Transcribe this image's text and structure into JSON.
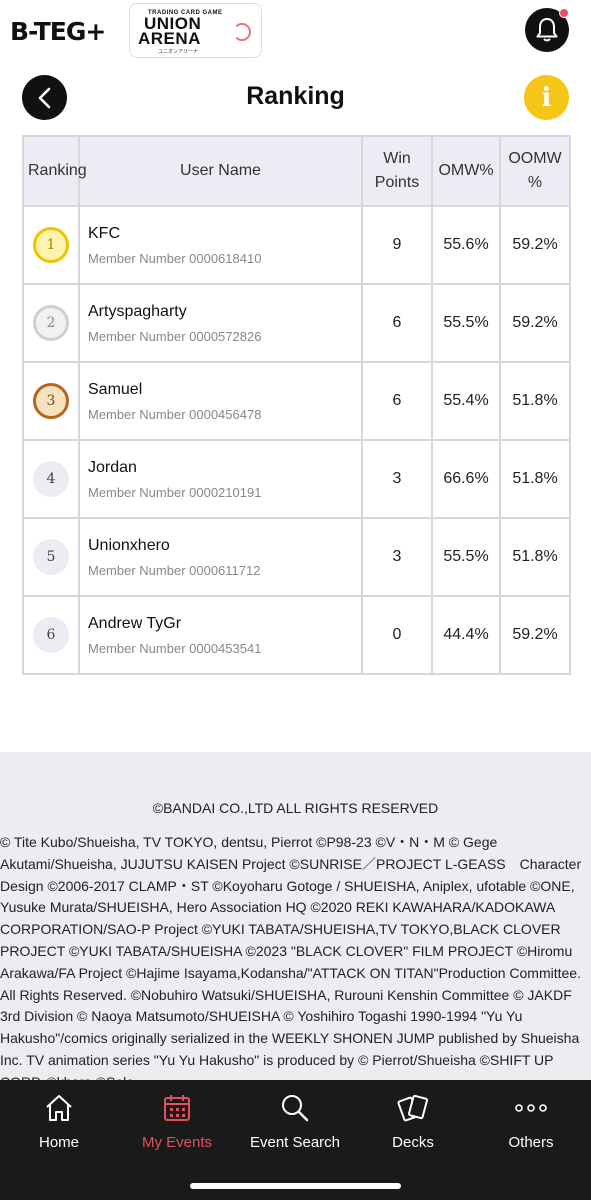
{
  "header": {
    "brand": "B-TEG+",
    "logo": {
      "tagline": "TRADING CARD GAME",
      "line1": "UNION",
      "line2": "ARENA",
      "kana": "ユニオンアリーナ"
    },
    "notification_badge": true
  },
  "title_bar": {
    "title": "Ranking"
  },
  "table": {
    "headers": {
      "rank": "Ranking",
      "user": "User Name",
      "win": "Win Points",
      "omw": "OMW%",
      "oomw": "OOMW %"
    },
    "rows": [
      {
        "rank": "1",
        "medal": "gold",
        "name": "KFC",
        "member": "Member Number 0000618410",
        "win": "9",
        "omw": "55.6%",
        "oomw": "59.2%"
      },
      {
        "rank": "2",
        "medal": "silver",
        "name": "Artyspagharty",
        "member": "Member Number 0000572826",
        "win": "6",
        "omw": "55.5%",
        "oomw": "59.2%"
      },
      {
        "rank": "3",
        "medal": "bronze",
        "name": "Samuel",
        "member": "Member Number 0000456478",
        "win": "6",
        "omw": "55.4%",
        "oomw": "51.8%"
      },
      {
        "rank": "4",
        "medal": "plain",
        "name": "Jordan",
        "member": "Member Number 0000210191",
        "win": "3",
        "omw": "66.6%",
        "oomw": "51.8%"
      },
      {
        "rank": "5",
        "medal": "plain",
        "name": "Unionxhero",
        "member": "Member Number 0000611712",
        "win": "3",
        "omw": "55.5%",
        "oomw": "51.8%"
      },
      {
        "rank": "6",
        "medal": "plain",
        "name": "Andrew TyGr",
        "member": "Member Number 0000453541",
        "win": "0",
        "omw": "44.4%",
        "oomw": "59.2%"
      }
    ]
  },
  "footer": {
    "main": "©BANDAI CO.,LTD ALL RIGHTS RESERVED",
    "credits": "© Tite Kubo/Shueisha, TV TOKYO, dentsu, Pierrot ©P98-23 ©V・N・M © Gege Akutami/Shueisha, JUJUTSU KAISEN Project ©SUNRISE／PROJECT L-GEASS　Character Design ©2006-2017 CLAMP・ST ©Koyoharu Gotoge / SHUEISHA, Aniplex, ufotable ©ONE, Yusuke Murata/SHUEISHA, Hero Association HQ ©2020 REKI KAWAHARA/KADOKAWA CORPORATION/SAO-P Project ©YUKI TABATA/SHUEISHA,TV TOKYO,BLACK CLOVER PROJECT ©YUKI TABATA/SHUEISHA ©2023 \"BLACK CLOVER\" FILM PROJECT ©Hiromu Arakawa/FA Project ©Hajime Isayama,Kodansha/\"ATTACK ON TITAN\"Production Committee. All Rights Reserved. ©Nobuhiro Watsuki/SHUEISHA, Rurouni Kenshin Committee © JAKDF 3rd Division © Naoya Matsumoto/SHUEISHA © Yoshihiro Togashi 1990-1994 \"Yu Yu Hakusho\"/comics originally serialized in the WEEKLY SHONEN JUMP published by Shueisha Inc. TV animation series \"Yu Yu Hakusho\" is produced by © Pierrot/Shueisha ©SHIFT UP CORP. ©khara ©Solo"
  },
  "bottom_nav": {
    "items": [
      {
        "label": "Home",
        "icon": "home-icon"
      },
      {
        "label": "My Events",
        "icon": "calendar-icon",
        "active": true
      },
      {
        "label": "Event Search",
        "icon": "search-icon"
      },
      {
        "label": "Decks",
        "icon": "cards-icon"
      },
      {
        "label": "Others",
        "icon": "more-icon"
      }
    ]
  },
  "colors": {
    "accent_active": "#e0505c",
    "info": "#f5c518",
    "notification_dot": "#ef4d5f",
    "header_cell": "#ececf4",
    "nav_bg": "#1a1a1a"
  }
}
